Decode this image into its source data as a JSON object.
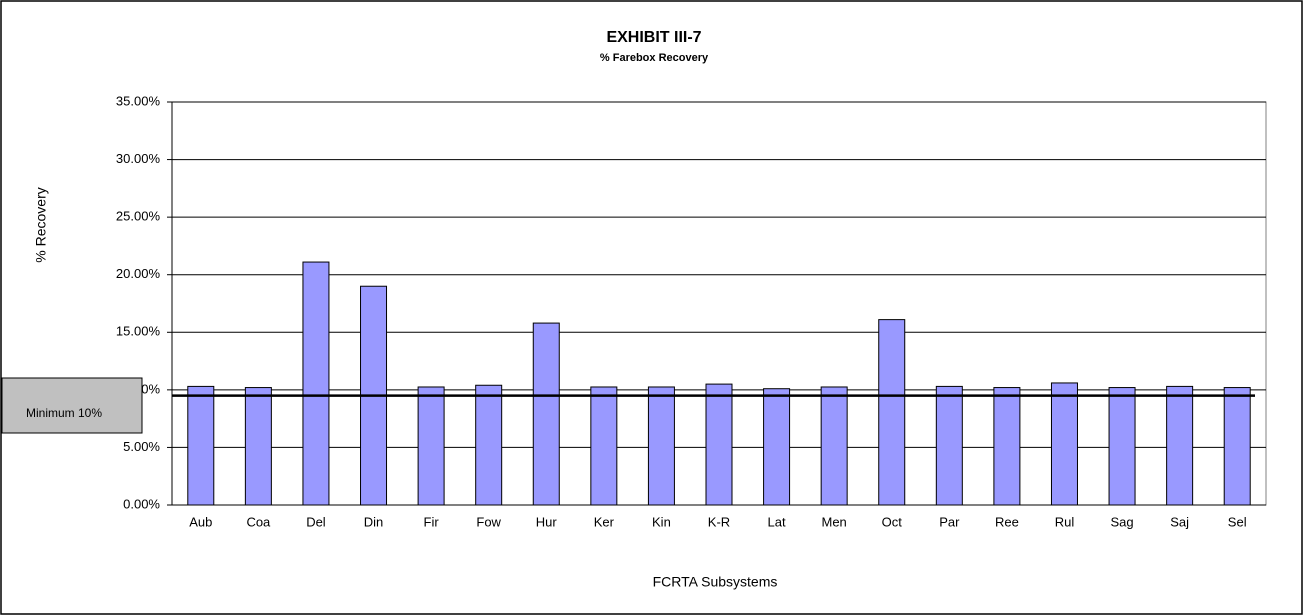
{
  "chart_data": {
    "type": "bar",
    "title": "EXHIBIT III-7",
    "subtitle": "% Farebox Recovery",
    "y_label": "% Recovery",
    "x_label": "FCRTA Subsystems",
    "categories": [
      "Aub",
      "Coa",
      "Del",
      "Din",
      "Fir",
      "Fow",
      "Hur",
      "Ker",
      "Kin",
      "K-R",
      "Lat",
      "Men",
      "Oct",
      "Par",
      "Ree",
      "Rul",
      "Sag",
      "Saj",
      "Sel"
    ],
    "values": [
      10.3,
      10.2,
      21.1,
      19.0,
      10.25,
      10.4,
      15.8,
      10.25,
      10.25,
      10.5,
      10.1,
      10.25,
      16.1,
      10.3,
      10.2,
      10.6,
      10.2,
      10.3,
      10.2
    ],
    "color": "#9999ff",
    "ylim": [
      0,
      35
    ],
    "yticks": [
      {
        "value": 0,
        "label": "0.00%"
      },
      {
        "value": 5,
        "label": "5.00%"
      },
      {
        "value": 10,
        "label": "10.00%"
      },
      {
        "value": 15,
        "label": "15.00%"
      },
      {
        "value": 20,
        "label": "20.00%"
      },
      {
        "value": 25,
        "label": "25.00%"
      },
      {
        "value": 30,
        "label": "30.00%"
      },
      {
        "value": 35,
        "label": "35.00%"
      }
    ],
    "grid": true,
    "threshold": {
      "label": "Minimum 10%",
      "value": 9.5
    }
  }
}
